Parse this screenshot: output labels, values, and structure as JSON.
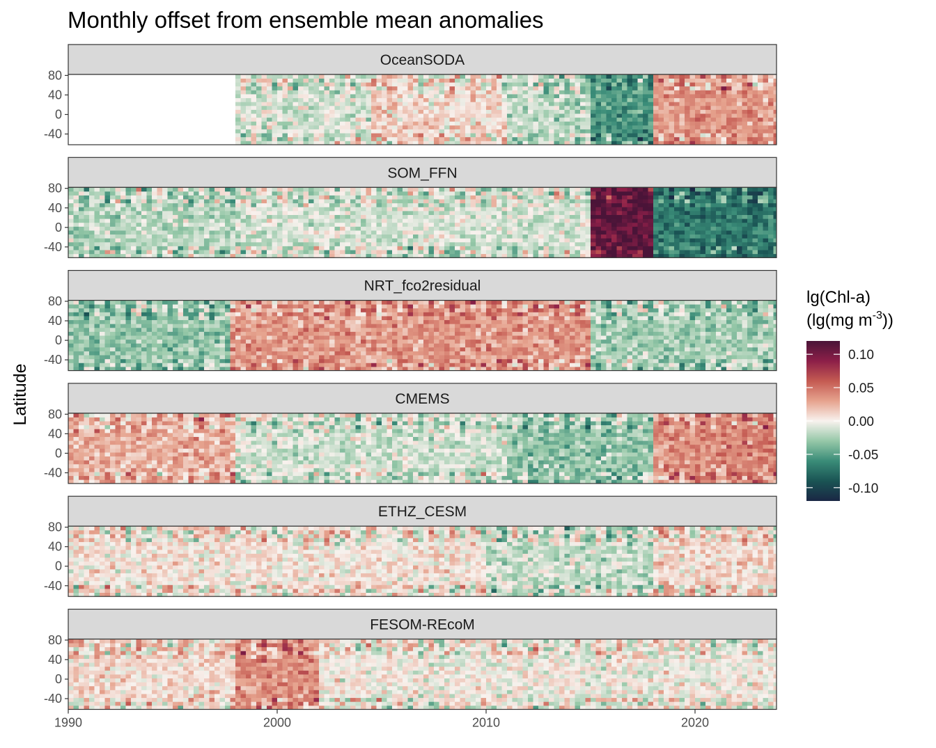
{
  "chart_data": {
    "type": "heatmap",
    "title": "Monthly offset from ensemble mean anomalies",
    "xlabel": "",
    "ylabel": "Latitude",
    "xlim": [
      1990,
      2023.9
    ],
    "ylim": [
      -62,
      82
    ],
    "x_ticks": [
      1990,
      2000,
      2010,
      2020
    ],
    "y_ticks": [
      80,
      40,
      0,
      -40
    ],
    "x_tick_labels": [
      "1990",
      "2000",
      "2010",
      "2020"
    ],
    "y_tick_labels": [
      "80",
      "40",
      "0",
      "-40"
    ],
    "grid": false,
    "colorbar": {
      "title_line1": "lg(Chl-a)",
      "title_line2_prefix": "(lg(mg m",
      "title_line2_sup": "-3",
      "title_line2_suffix": "))",
      "limits": [
        -0.12,
        0.12
      ],
      "ticks": [
        0.1,
        0.05,
        0.0,
        -0.05,
        -0.1
      ],
      "tick_labels": [
        "0.10",
        "0.05",
        "0.00",
        "-0.05",
        "-0.10"
      ],
      "colors": [
        "#1a2744",
        "#1a5454",
        "#3a8c78",
        "#96c8a8",
        "#f8f2ee",
        "#e6a38e",
        "#c45a52",
        "#8c1f48",
        "#4a1438"
      ],
      "placement": "right"
    },
    "panels": [
      {
        "name": "OceanSODA",
        "data_start": 1998,
        "periods": [
          {
            "from": 1998,
            "to": 2004.5,
            "mean": -0.01
          },
          {
            "from": 2004.5,
            "to": 2011,
            "mean": 0.01
          },
          {
            "from": 2011,
            "to": 2015,
            "mean": -0.02
          },
          {
            "from": 2015,
            "to": 2018,
            "mean": -0.055
          },
          {
            "from": 2018,
            "to": 2023.9,
            "mean": 0.035
          }
        ]
      },
      {
        "name": "SOM_FFN",
        "data_start": 1990,
        "periods": [
          {
            "from": 1990,
            "to": 1998,
            "mean": -0.02
          },
          {
            "from": 1998,
            "to": 2015,
            "mean": -0.01
          },
          {
            "from": 2015,
            "to": 2018,
            "mean": 0.11
          },
          {
            "from": 2018,
            "to": 2023.9,
            "mean": -0.07
          }
        ]
      },
      {
        "name": "NRT_fco2residual",
        "data_start": 1990,
        "periods": [
          {
            "from": 1990,
            "to": 1997.7,
            "mean": -0.03
          },
          {
            "from": 1997.7,
            "to": 2015,
            "mean": 0.035
          },
          {
            "from": 2015,
            "to": 2023.9,
            "mean": -0.025
          }
        ]
      },
      {
        "name": "CMEMS",
        "data_start": 1990,
        "periods": [
          {
            "from": 1990,
            "to": 1998,
            "mean": 0.025
          },
          {
            "from": 1998,
            "to": 2011,
            "mean": -0.012
          },
          {
            "from": 2011,
            "to": 2018,
            "mean": -0.03
          },
          {
            "from": 2018,
            "to": 2023.9,
            "mean": 0.04
          }
        ]
      },
      {
        "name": "ETHZ_CESM",
        "data_start": 1990,
        "periods": [
          {
            "from": 1990,
            "to": 2010,
            "mean": 0.005
          },
          {
            "from": 2010,
            "to": 2018,
            "mean": -0.015
          },
          {
            "from": 2018,
            "to": 2023.9,
            "mean": 0.01
          }
        ]
      },
      {
        "name": "FESOM-REcoM",
        "data_start": 1990,
        "periods": [
          {
            "from": 1990,
            "to": 1998,
            "mean": 0.01
          },
          {
            "from": 1998,
            "to": 2002,
            "mean": 0.04
          },
          {
            "from": 2002,
            "to": 2023.9,
            "mean": 0.0
          }
        ]
      }
    ]
  }
}
